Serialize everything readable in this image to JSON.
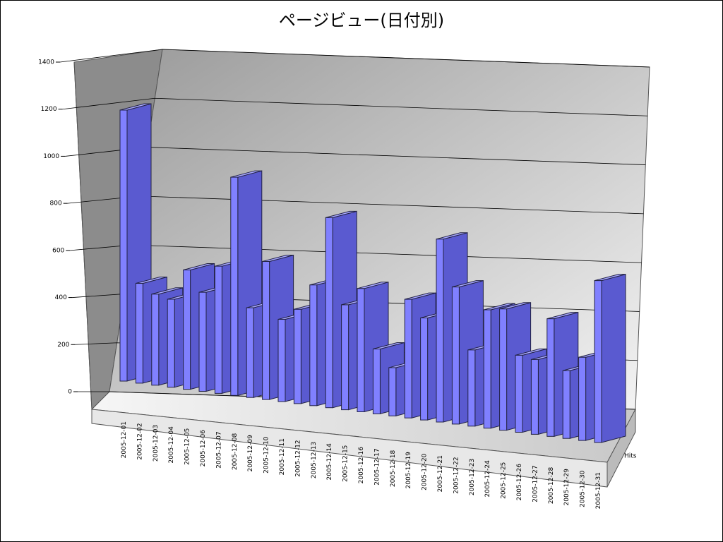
{
  "chart_data": {
    "type": "bar3d",
    "title": "ページビュー(日付別)",
    "categories": [
      "2005-12-01",
      "2005-12-02",
      "2005-12-03",
      "2005-12-04",
      "2005-12-05",
      "2005-12-06",
      "2005-12-07",
      "2005-12-08",
      "2005-12-09",
      "2005-12-10",
      "2005-12-11",
      "2005-12-12",
      "2005-12-13",
      "2005-12-14",
      "2005-12-15",
      "2005-12-16",
      "2005-12-17",
      "2005-12-18",
      "2005-12-19",
      "2005-12-20",
      "2005-12-21",
      "2005-12-22",
      "2005-12-23",
      "2005-12-24",
      "2005-12-25",
      "2005-12-26",
      "2005-12-27",
      "2005-12-28",
      "2005-12-29",
      "2005-12-30",
      "2005-12-31"
    ],
    "series": [
      {
        "name": "Hits",
        "color": "#8080ff",
        "values": [
          1200,
          440,
          400,
          385,
          520,
          430,
          550,
          940,
          385,
          590,
          350,
          400,
          510,
          800,
          440,
          515,
          270,
          200,
          490,
          420,
          750,
          560,
          310,
          480,
          490,
          310,
          300,
          470,
          270,
          330,
          640
        ]
      }
    ],
    "ylim": [
      0,
      1400
    ],
    "yticks": [
      0,
      200,
      400,
      600,
      800,
      1000,
      1200,
      1400
    ],
    "grid": true
  }
}
